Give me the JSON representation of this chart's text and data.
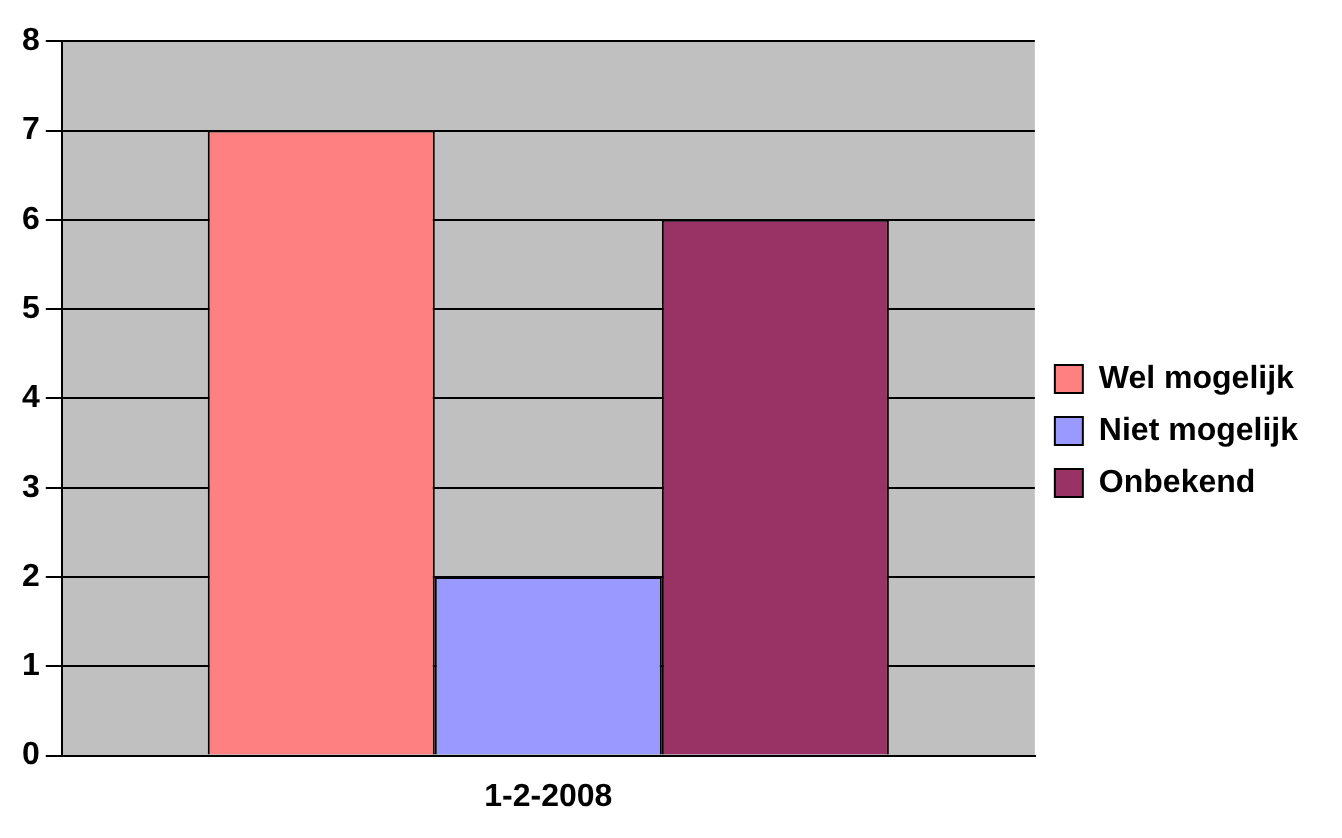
{
  "chart_data": {
    "type": "bar",
    "categories": [
      "1-2-2008"
    ],
    "series": [
      {
        "name": "Wel mogelijk",
        "color": "#ff8080",
        "values": [
          7
        ]
      },
      {
        "name": "Niet mogelijk",
        "color": "#9999ff",
        "values": [
          2
        ]
      },
      {
        "name": "Onbekend",
        "color": "#993366",
        "values": [
          6
        ]
      }
    ],
    "ylim": [
      0,
      8
    ],
    "yticks": [
      0,
      1,
      2,
      3,
      4,
      5,
      6,
      7,
      8
    ],
    "grid": "y",
    "legend": "right"
  }
}
